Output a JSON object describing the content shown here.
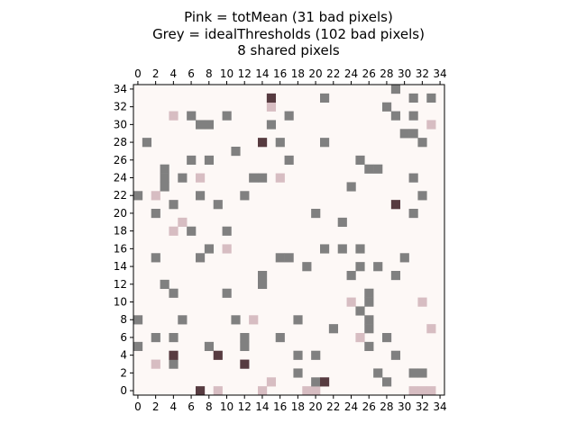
{
  "chart_data": {
    "type": "heatmap",
    "title_lines": [
      "Pink = totMean (31 bad pixels)",
      "Grey = idealThresholds (102 bad pixels)",
      "8 shared pixels"
    ],
    "grid_size": [
      35,
      35
    ],
    "xlim": [
      -0.5,
      34.5
    ],
    "ylim": [
      -0.5,
      34.5
    ],
    "x_ticks": [
      0,
      2,
      4,
      6,
      8,
      10,
      12,
      14,
      16,
      18,
      20,
      22,
      24,
      26,
      28,
      30,
      32,
      34
    ],
    "x_ticks_top": [
      0,
      2,
      4,
      6,
      8,
      10,
      12,
      14,
      16,
      18,
      20,
      22,
      24,
      26,
      28,
      30,
      32,
      34
    ],
    "y_ticks": [
      0,
      2,
      4,
      6,
      8,
      10,
      12,
      14,
      16,
      18,
      20,
      22,
      24,
      26,
      28,
      30,
      32,
      34
    ],
    "colors": {
      "background": "#fdf8f6",
      "pink": "#d7bdc2",
      "grey": "#808080",
      "shared": "#573b40"
    },
    "pink_pixels": [
      [
        4,
        31
      ],
      [
        15,
        32
      ],
      [
        33,
        30
      ],
      [
        7,
        24
      ],
      [
        16,
        24
      ],
      [
        2,
        22
      ],
      [
        5,
        19
      ],
      [
        4,
        18
      ],
      [
        10,
        16
      ],
      [
        13,
        8
      ],
      [
        24,
        10
      ],
      [
        32,
        10
      ],
      [
        33,
        7
      ],
      [
        25,
        6
      ],
      [
        2,
        3
      ],
      [
        15,
        1
      ],
      [
        9,
        0
      ],
      [
        14,
        0
      ],
      [
        19,
        0
      ],
      [
        20,
        0
      ],
      [
        31,
        0
      ],
      [
        32,
        0
      ],
      [
        33,
        0
      ]
    ],
    "grey_pixels": [
      [
        29,
        34
      ],
      [
        21,
        33
      ],
      [
        31,
        33
      ],
      [
        33,
        33
      ],
      [
        28,
        32
      ],
      [
        6,
        31
      ],
      [
        10,
        31
      ],
      [
        17,
        31
      ],
      [
        29,
        31
      ],
      [
        31,
        31
      ],
      [
        7,
        30
      ],
      [
        8,
        30
      ],
      [
        15,
        30
      ],
      [
        30,
        29
      ],
      [
        31,
        29
      ],
      [
        1,
        28
      ],
      [
        16,
        28
      ],
      [
        21,
        28
      ],
      [
        32,
        28
      ],
      [
        11,
        27
      ],
      [
        6,
        26
      ],
      [
        8,
        26
      ],
      [
        17,
        26
      ],
      [
        25,
        26
      ],
      [
        3,
        25
      ],
      [
        26,
        25
      ],
      [
        27,
        25
      ],
      [
        3,
        24
      ],
      [
        5,
        24
      ],
      [
        13,
        24
      ],
      [
        14,
        24
      ],
      [
        31,
        24
      ],
      [
        3,
        23
      ],
      [
        24,
        23
      ],
      [
        0,
        22
      ],
      [
        7,
        22
      ],
      [
        12,
        22
      ],
      [
        32,
        22
      ],
      [
        4,
        21
      ],
      [
        9,
        21
      ],
      [
        2,
        20
      ],
      [
        20,
        20
      ],
      [
        31,
        20
      ],
      [
        23,
        19
      ],
      [
        6,
        18
      ],
      [
        10,
        18
      ],
      [
        8,
        16
      ],
      [
        21,
        16
      ],
      [
        23,
        16
      ],
      [
        25,
        16
      ],
      [
        2,
        15
      ],
      [
        7,
        15
      ],
      [
        16,
        15
      ],
      [
        17,
        15
      ],
      [
        30,
        15
      ],
      [
        19,
        14
      ],
      [
        25,
        14
      ],
      [
        27,
        14
      ],
      [
        14,
        13
      ],
      [
        24,
        13
      ],
      [
        29,
        13
      ],
      [
        3,
        12
      ],
      [
        14,
        12
      ],
      [
        4,
        11
      ],
      [
        10,
        11
      ],
      [
        26,
        11
      ],
      [
        26,
        10
      ],
      [
        25,
        9
      ],
      [
        0,
        8
      ],
      [
        5,
        8
      ],
      [
        11,
        8
      ],
      [
        18,
        8
      ],
      [
        26,
        8
      ],
      [
        22,
        7
      ],
      [
        26,
        7
      ],
      [
        2,
        6
      ],
      [
        4,
        6
      ],
      [
        12,
        6
      ],
      [
        16,
        6
      ],
      [
        28,
        6
      ],
      [
        0,
        5
      ],
      [
        8,
        5
      ],
      [
        12,
        5
      ],
      [
        26,
        5
      ],
      [
        18,
        4
      ],
      [
        20,
        4
      ],
      [
        29,
        4
      ],
      [
        4,
        3
      ],
      [
        18,
        2
      ],
      [
        27,
        2
      ],
      [
        31,
        2
      ],
      [
        32,
        2
      ],
      [
        20,
        1
      ],
      [
        28,
        1
      ]
    ],
    "shared_pixels": [
      [
        15,
        33
      ],
      [
        14,
        28
      ],
      [
        29,
        21
      ],
      [
        4,
        4
      ],
      [
        9,
        4
      ],
      [
        12,
        3
      ],
      [
        21,
        1
      ],
      [
        7,
        0
      ]
    ]
  }
}
